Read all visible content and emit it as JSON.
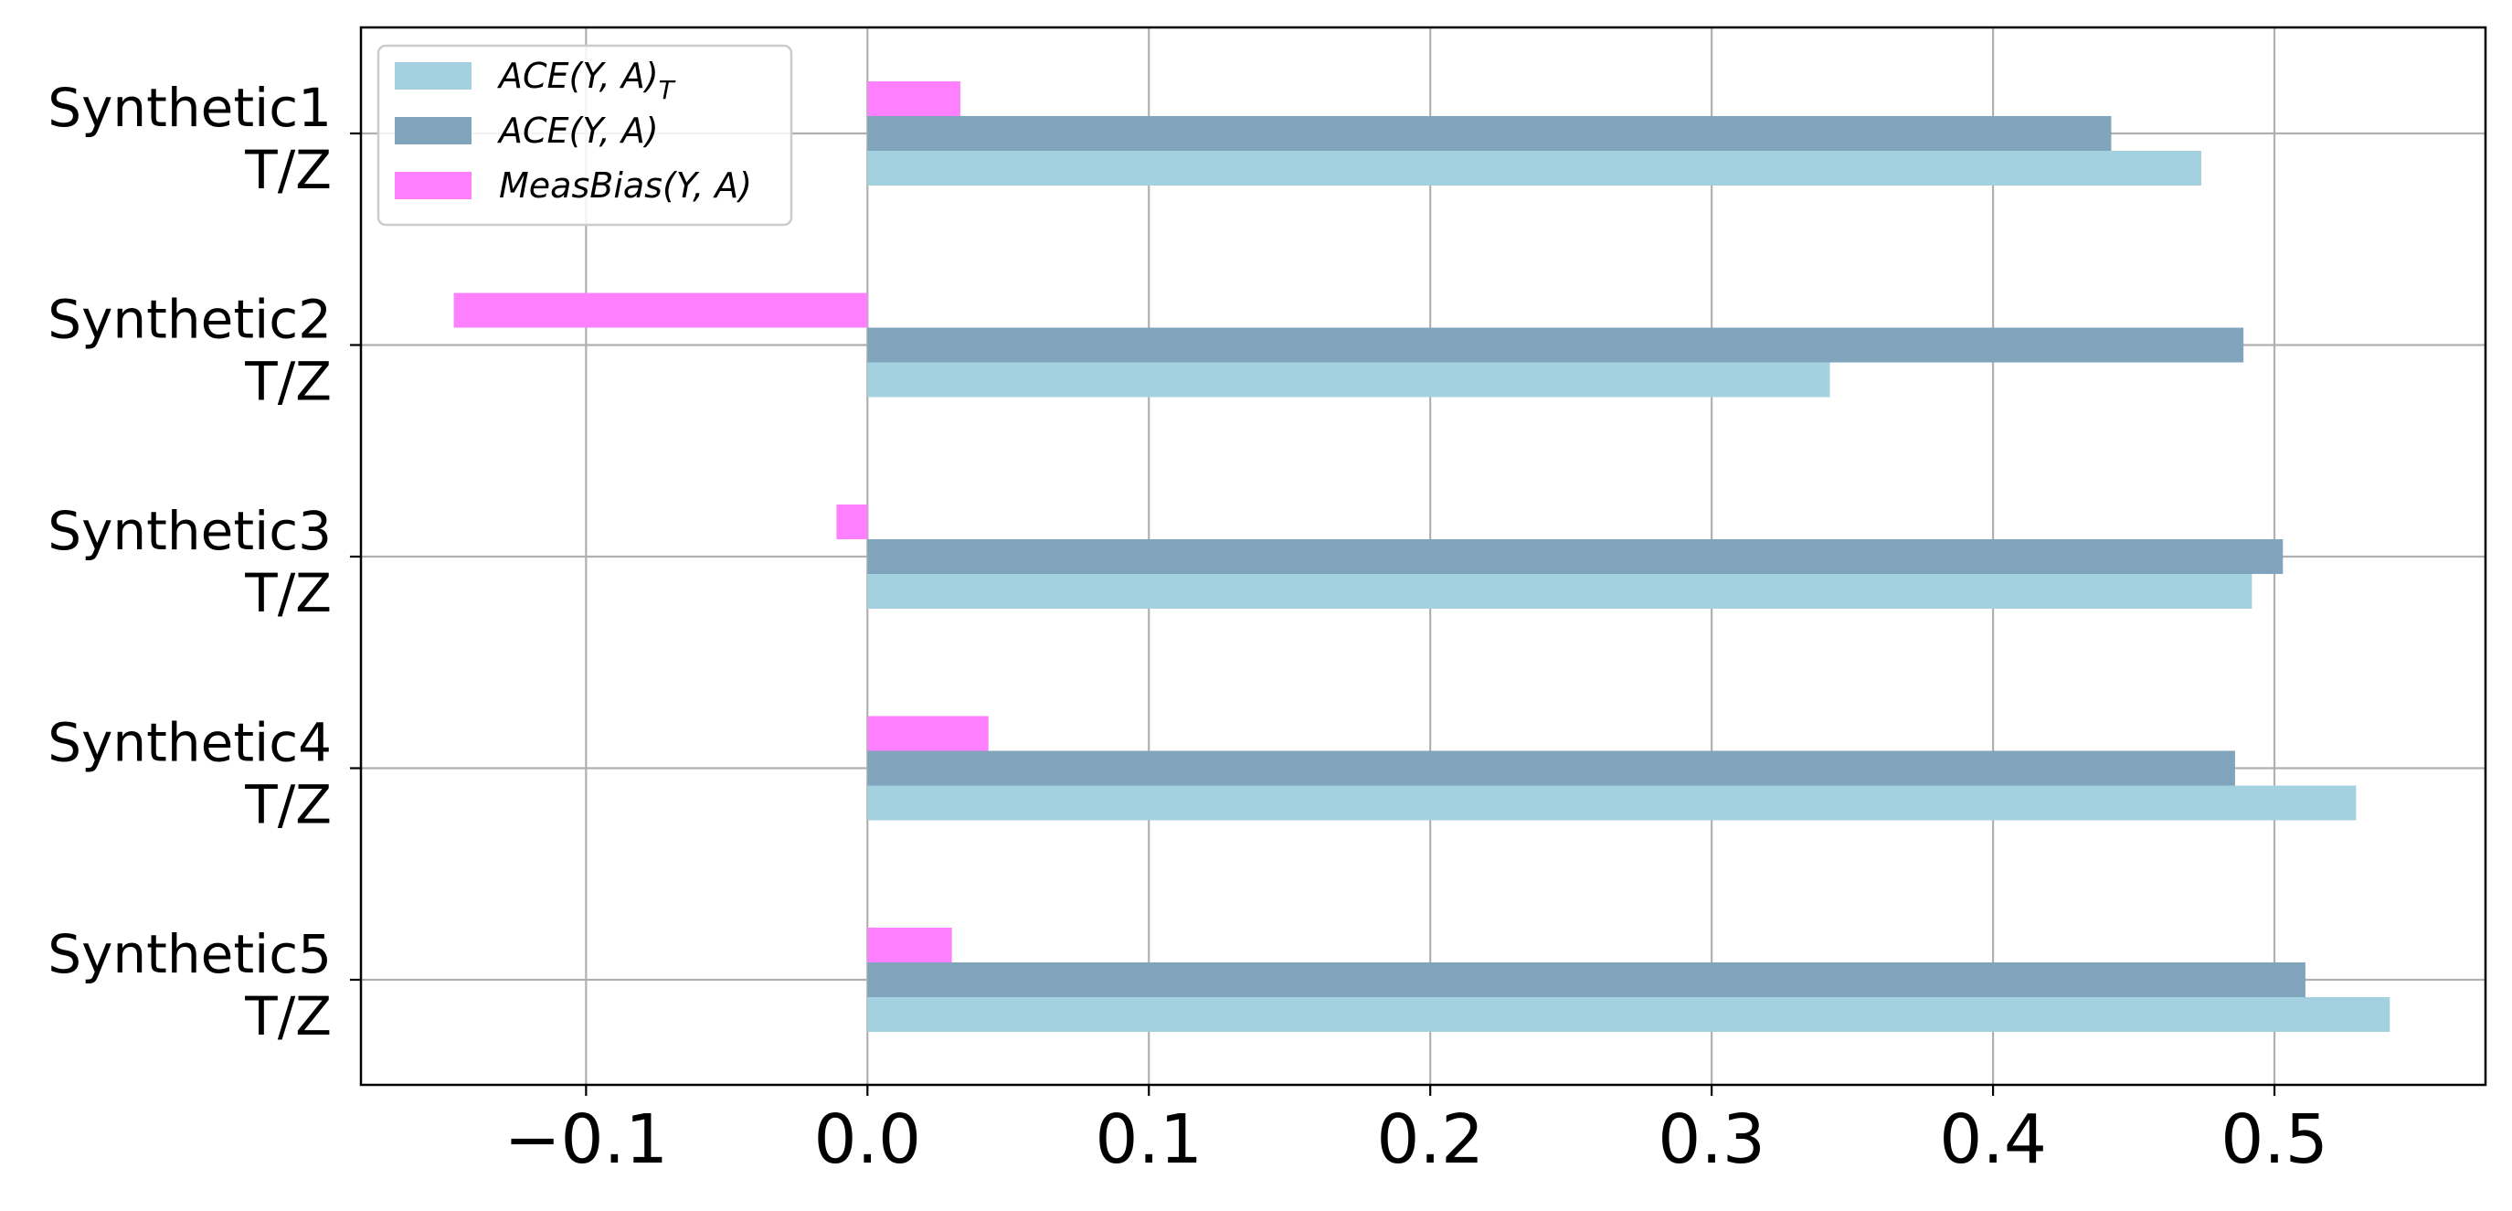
{
  "chart_data": {
    "type": "bar",
    "orientation": "horizontal",
    "categories": [
      [
        "Synthetic1",
        "T/Z"
      ],
      [
        "Synthetic2",
        "T/Z"
      ],
      [
        "Synthetic3",
        "T/Z"
      ],
      [
        "Synthetic4",
        "T/Z"
      ],
      [
        "Synthetic5",
        "T/Z"
      ]
    ],
    "series": [
      {
        "name": "ACE(Y, A)",
        "name_sub": "T",
        "color": "#a3d1e0",
        "values": [
          0.474,
          0.342,
          0.492,
          0.529,
          0.541
        ]
      },
      {
        "name": "ACE(Y, A)",
        "name_sub": "",
        "color": "#7fa4bb",
        "values": [
          0.442,
          0.489,
          0.503,
          0.486,
          0.511
        ]
      },
      {
        "name": "MeasBias(Y, A)",
        "name_sub": "",
        "color": "#ff80ff",
        "values": [
          0.033,
          -0.147,
          -0.011,
          0.043,
          0.03
        ]
      }
    ],
    "x_ticks": [
      -0.1,
      0.0,
      0.1,
      0.2,
      0.3,
      0.4,
      0.5
    ],
    "x_tick_labels": [
      "−0.1",
      "0.0",
      "0.1",
      "0.2",
      "0.3",
      "0.4",
      "0.5"
    ],
    "xlim": [
      -0.18,
      0.575
    ],
    "grid": true,
    "legend_position": "top-left",
    "title": "",
    "xlabel": "",
    "ylabel": ""
  }
}
